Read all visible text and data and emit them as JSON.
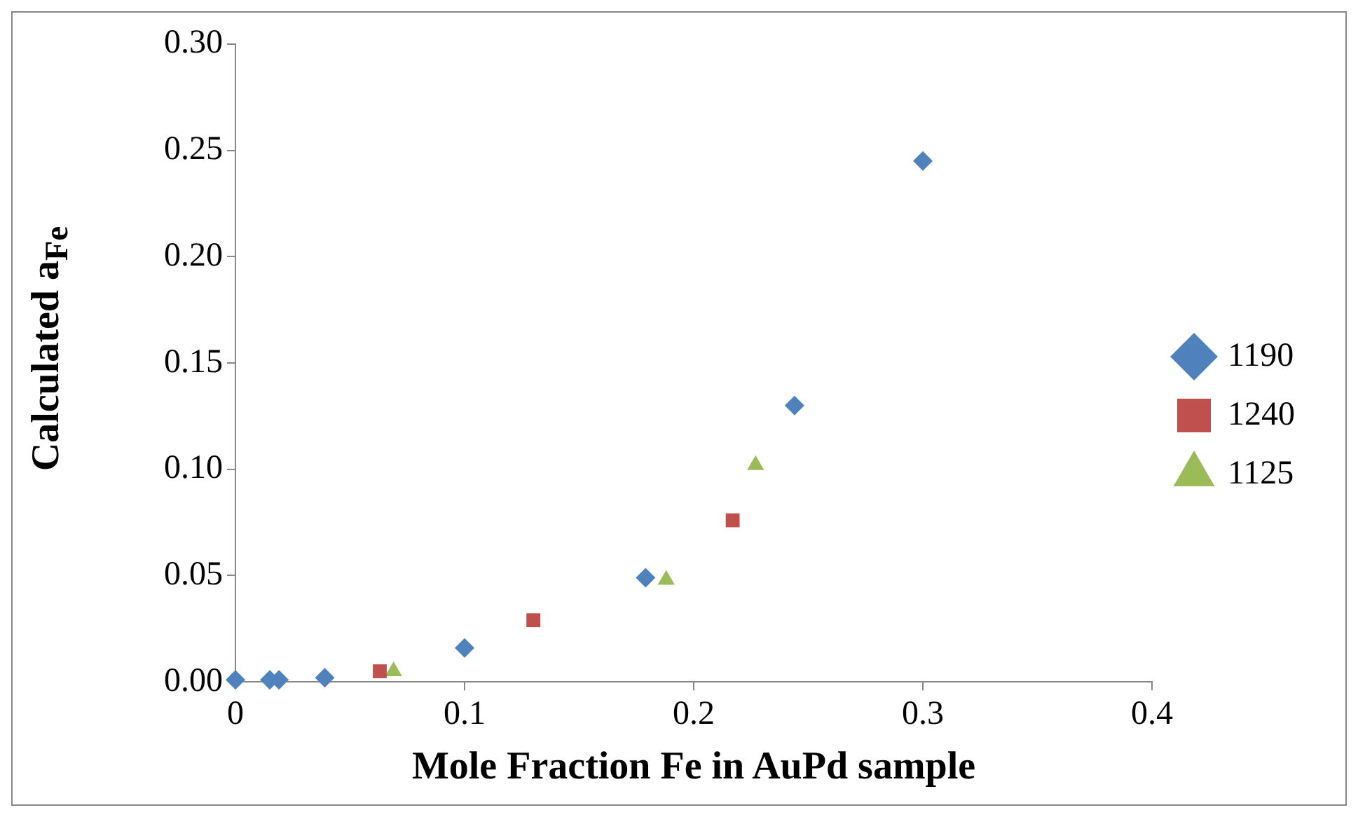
{
  "chart_data": {
    "type": "scatter",
    "xlabel": "Mole Fraction Fe in AuPd sample",
    "ylabel": "Calculated a$_{Fe}$",
    "xlim": [
      0,
      0.4
    ],
    "xticks": [
      0,
      0.1,
      0.2,
      0.3,
      0.4
    ],
    "ylim": [
      0,
      0.3
    ],
    "yticks": [
      {
        "value": 0,
        "label": "0.00"
      },
      {
        "value": 0.05,
        "label": "0.05"
      },
      {
        "value": 0.1,
        "label": "0.10"
      },
      {
        "value": 0.15,
        "label": "0.15"
      },
      {
        "value": 0.2,
        "label": "0.20"
      },
      {
        "value": 0.25,
        "label": "0.25"
      },
      {
        "value": 0.3,
        "label": "0.30"
      }
    ],
    "grid": false,
    "legend": "right",
    "series": [
      {
        "name": "1190",
        "color": "#4f81bd",
        "marker": "diamond",
        "x": [
          0,
          0.015,
          0.019,
          0.039,
          0.1,
          0.179,
          0.244,
          0.3
        ],
        "values": [
          0.001,
          0.001,
          0.001,
          0.002,
          0.016,
          0.049,
          0.13,
          0.245
        ]
      },
      {
        "name": "1240",
        "color": "#c0504d",
        "marker": "square",
        "x": [
          0.063,
          0.13,
          0.217
        ],
        "values": [
          0.005,
          0.029,
          0.076
        ]
      },
      {
        "name": "1125",
        "color": "#9bbb59",
        "marker": "triangle",
        "x": [
          0.069,
          0.188,
          0.227
        ],
        "values": [
          0.005,
          0.048,
          0.102
        ]
      }
    ]
  }
}
